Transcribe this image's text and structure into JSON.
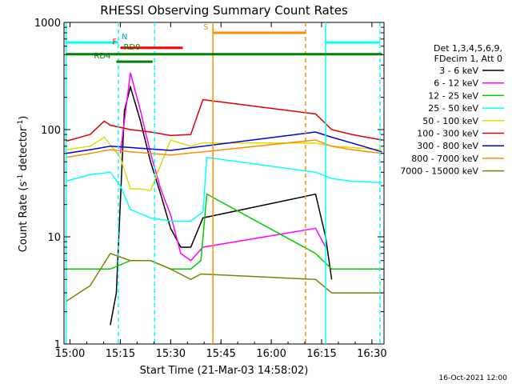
{
  "chart_data": {
    "type": "line",
    "title": "RHESSI Observing Summary Count Rates",
    "xlabel": "Start Time (21-Mar-03 14:58:02)",
    "ylabel_main": "Count Rate (s",
    "ylabel_sup1": "-1",
    "ylabel_mid": " detector",
    "ylabel_sup2": "-1",
    "ylabel_end": ")",
    "yscale": "log",
    "ylim": [
      1,
      1000
    ],
    "xlim_minutes": [
      14.97,
      16.56
    ],
    "x_ticks": [
      {
        "label": "15:00",
        "value": 15.0
      },
      {
        "label": "15:15",
        "value": 15.25
      },
      {
        "label": "15:30",
        "value": 15.5
      },
      {
        "label": "15:45",
        "value": 15.75
      },
      {
        "label": "16:00",
        "value": 16.0
      },
      {
        "label": "16:15",
        "value": 16.25
      },
      {
        "label": "16:30",
        "value": 16.5
      }
    ],
    "y_ticks": [
      {
        "label": "1",
        "value": 1
      },
      {
        "label": "10",
        "value": 10
      },
      {
        "label": "100",
        "value": 100
      },
      {
        "label": "1000",
        "value": 1000
      }
    ],
    "legend_header": [
      "Det 1,3,4,5,6,9,",
      "FDecim 1, Att 0"
    ],
    "series": [
      {
        "name": "3 - 6 keV",
        "color": "#000000",
        "points": [
          [
            15.2,
            1.5
          ],
          [
            15.23,
            3
          ],
          [
            15.27,
            150
          ],
          [
            15.3,
            250
          ],
          [
            15.35,
            120
          ],
          [
            15.4,
            50
          ],
          [
            15.45,
            25
          ],
          [
            15.5,
            12
          ],
          [
            15.55,
            8
          ],
          [
            15.6,
            8
          ],
          [
            15.66,
            15
          ],
          [
            16.22,
            25
          ],
          [
            16.27,
            10
          ],
          [
            16.3,
            4
          ]
        ]
      },
      {
        "name": "6 - 12 keV",
        "color": "#ff00ff",
        "points": [
          [
            15.25,
            60
          ],
          [
            15.27,
            120
          ],
          [
            15.3,
            340
          ],
          [
            15.35,
            150
          ],
          [
            15.4,
            60
          ],
          [
            15.45,
            28
          ],
          [
            15.5,
            16
          ],
          [
            15.55,
            7
          ],
          [
            15.6,
            6
          ],
          [
            15.66,
            8
          ],
          [
            16.22,
            12
          ],
          [
            16.27,
            8
          ]
        ]
      },
      {
        "name": "12 - 25 keV",
        "color": "#00cc00",
        "points": [
          [
            14.98,
            5
          ],
          [
            15.1,
            5
          ],
          [
            15.2,
            5
          ],
          [
            15.3,
            6
          ],
          [
            15.4,
            6
          ],
          [
            15.5,
            5
          ],
          [
            15.6,
            5
          ],
          [
            15.65,
            6
          ],
          [
            15.68,
            25
          ],
          [
            16.22,
            7
          ],
          [
            16.3,
            5
          ],
          [
            16.4,
            5
          ],
          [
            16.55,
            5
          ]
        ]
      },
      {
        "name": "25 - 50 keV",
        "color": "#00ffff",
        "points": [
          [
            14.98,
            33
          ],
          [
            15.1,
            38
          ],
          [
            15.2,
            40
          ],
          [
            15.25,
            30
          ],
          [
            15.3,
            18
          ],
          [
            15.4,
            15
          ],
          [
            15.5,
            14
          ],
          [
            15.6,
            14
          ],
          [
            15.66,
            17
          ],
          [
            15.68,
            55
          ],
          [
            16.22,
            40
          ],
          [
            16.3,
            35
          ],
          [
            16.4,
            33
          ],
          [
            16.55,
            32
          ]
        ]
      },
      {
        "name": "50 - 100 keV",
        "color": "#dddd00",
        "points": [
          [
            14.98,
            65
          ],
          [
            15.1,
            70
          ],
          [
            15.17,
            85
          ],
          [
            15.25,
            55
          ],
          [
            15.3,
            28
          ],
          [
            15.35,
            28
          ],
          [
            15.4,
            27
          ],
          [
            15.5,
            80
          ],
          [
            15.6,
            70
          ],
          [
            15.66,
            75
          ],
          [
            16.22,
            75
          ],
          [
            16.3,
            70
          ],
          [
            16.4,
            68
          ],
          [
            16.55,
            65
          ]
        ]
      },
      {
        "name": "100 - 300 keV",
        "color": "#dd0000",
        "points": [
          [
            14.98,
            78
          ],
          [
            15.1,
            90
          ],
          [
            15.17,
            120
          ],
          [
            15.2,
            110
          ],
          [
            15.3,
            100
          ],
          [
            15.4,
            95
          ],
          [
            15.5,
            88
          ],
          [
            15.6,
            90
          ],
          [
            15.66,
            190
          ],
          [
            16.22,
            140
          ],
          [
            16.3,
            100
          ],
          [
            16.4,
            90
          ],
          [
            16.55,
            80
          ]
        ]
      },
      {
        "name": "300 - 800 keV",
        "color": "#0000dd",
        "points": [
          [
            14.98,
            60
          ],
          [
            15.1,
            65
          ],
          [
            15.2,
            70
          ],
          [
            15.3,
            68
          ],
          [
            15.4,
            66
          ],
          [
            15.5,
            64
          ],
          [
            15.66,
            70
          ],
          [
            16.22,
            95
          ],
          [
            16.3,
            85
          ],
          [
            16.4,
            75
          ],
          [
            16.55,
            62
          ]
        ]
      },
      {
        "name": "800 - 7000 keV",
        "color": "#ff8c00",
        "points": [
          [
            14.98,
            55
          ],
          [
            15.1,
            60
          ],
          [
            15.2,
            65
          ],
          [
            15.3,
            62
          ],
          [
            15.4,
            60
          ],
          [
            15.5,
            58
          ],
          [
            15.66,
            62
          ],
          [
            16.22,
            80
          ],
          [
            16.3,
            70
          ],
          [
            16.4,
            65
          ],
          [
            16.55,
            60
          ]
        ]
      },
      {
        "name": "7000 - 15000 keV",
        "color": "#808000",
        "points": [
          [
            14.98,
            2.5
          ],
          [
            15.1,
            3.5
          ],
          [
            15.2,
            7
          ],
          [
            15.3,
            6
          ],
          [
            15.4,
            6
          ],
          [
            15.5,
            5
          ],
          [
            15.6,
            4
          ],
          [
            15.65,
            4.5
          ],
          [
            16.22,
            4
          ],
          [
            16.3,
            3
          ],
          [
            16.4,
            3
          ],
          [
            16.55,
            3
          ]
        ]
      }
    ],
    "bars": [
      {
        "label": "",
        "color": "#00ffff",
        "start": 14.98,
        "end": 15.24,
        "level": 650
      },
      {
        "label": "N",
        "color": "#00ffff",
        "start": 15.24,
        "end": 15.24,
        "level": 650
      },
      {
        "label": "",
        "color": "#00ffff",
        "start": 16.27,
        "end": 16.54,
        "level": 650
      },
      {
        "label": "S",
        "color": "#ff8c00",
        "start": 15.71,
        "end": 16.17,
        "level": 800
      },
      {
        "label": "F",
        "color": "#ff0000",
        "start": 15.25,
        "end": 15.56,
        "level": 580
      },
      {
        "label": "RD0",
        "color": "#008000",
        "start": 15.25,
        "end": 15.25,
        "level": 520
      },
      {
        "label": "",
        "color": "#008000",
        "start": 14.98,
        "end": 16.55,
        "level": 505
      },
      {
        "label": "RD4",
        "color": "#008000",
        "start": 15.23,
        "end": 15.41,
        "level": 430
      }
    ],
    "vlines": [
      {
        "x": 14.98,
        "color": "#00ffff",
        "style": "solid"
      },
      {
        "x": 15.24,
        "color": "#00ffff",
        "style": "dashed"
      },
      {
        "x": 15.42,
        "color": "#00ffff",
        "style": "dashed"
      },
      {
        "x": 15.71,
        "color": "#ff8c00",
        "style": "solid"
      },
      {
        "x": 16.17,
        "color": "#ff8c00",
        "style": "dashed"
      },
      {
        "x": 16.27,
        "color": "#00ffff",
        "style": "solid"
      },
      {
        "x": 16.54,
        "color": "#00ffff",
        "style": "dashed"
      }
    ],
    "footer": "16-Oct-2021 12:00"
  }
}
